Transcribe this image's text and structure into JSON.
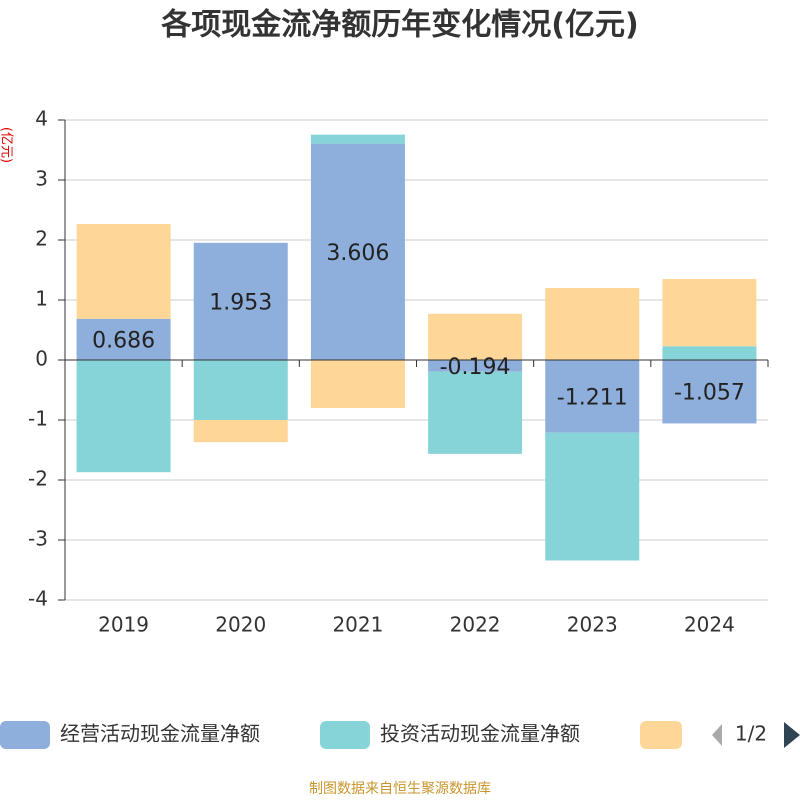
{
  "chart_data": {
    "type": "bar",
    "stacked": true,
    "title": "各项现金流净额历年变化情况(亿元)",
    "y_label": "(亿元)",
    "categories": [
      "2019",
      "2020",
      "2021",
      "2022",
      "2023",
      "2024"
    ],
    "series": [
      {
        "name": "经营活动现金流量净额",
        "color": "#8eaedb",
        "labels": true,
        "values": [
          0.686,
          1.953,
          3.606,
          -0.194,
          -1.211,
          -1.057
        ]
      },
      {
        "name": "投资活动现金流量净额",
        "color": "#87d4d8",
        "values": [
          -1.87,
          -1.0,
          0.15,
          -1.37,
          -2.13,
          0.23
        ]
      },
      {
        "color": "#fdd698",
        "values": [
          1.58,
          -0.37,
          -0.8,
          0.77,
          1.2,
          1.12
        ]
      }
    ],
    "ylim": [
      -4,
      4
    ],
    "yticks": [
      -4,
      -3,
      -2,
      -1,
      0,
      1,
      2,
      3,
      4
    ],
    "grid": true,
    "legend_page": "1/2",
    "source": "制图数据来自恒生聚源数据库"
  }
}
